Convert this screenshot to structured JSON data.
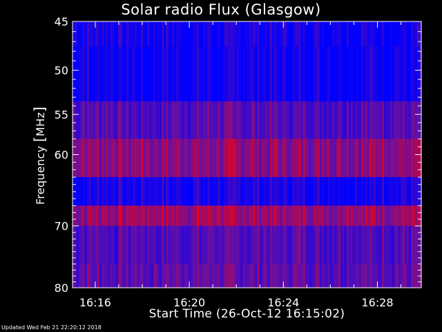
{
  "chart_data": {
    "type": "heatmap",
    "title": "Solar radio Flux (Glasgow)",
    "xlabel": "Start Time (26-Oct-12 16:15:02)",
    "ylabel": "Frequency",
    "ylabel_unit": "MHz",
    "x_ticks": [
      {
        "time": "16:16:00",
        "label": "16:16"
      },
      {
        "time": "16:20:00",
        "label": "16:20"
      },
      {
        "time": "16:24:00",
        "label": "16:24"
      },
      {
        "time": "16:28:00",
        "label": "16:28"
      }
    ],
    "x_range": [
      "16:15:02",
      "16:29:52"
    ],
    "y_ticks": [
      45,
      50,
      55,
      60,
      70,
      80
    ],
    "y_range_mhz": [
      45,
      80
    ],
    "y_scale": "log",
    "frequency_bands": [
      {
        "from_mhz": 45,
        "to_mhz": 47.5,
        "intensity": 0.1
      },
      {
        "from_mhz": 47.5,
        "to_mhz": 53.5,
        "intensity": 0.08
      },
      {
        "from_mhz": 53.5,
        "to_mhz": 58,
        "intensity": 0.4
      },
      {
        "from_mhz": 58,
        "to_mhz": 63,
        "intensity": 0.62
      },
      {
        "from_mhz": 63,
        "to_mhz": 67,
        "intensity": 0.12
      },
      {
        "from_mhz": 67,
        "to_mhz": 70,
        "intensity": 0.68
      },
      {
        "from_mhz": 70,
        "to_mhz": 76,
        "intensity": 0.4
      },
      {
        "from_mhz": 76,
        "to_mhz": 80,
        "intensity": 0.45
      }
    ],
    "colors": {
      "low": "#0000ff",
      "mid": "#6a10a0",
      "high": "#ff0000",
      "peak": "#ffcc66"
    },
    "grid": false,
    "legend": "none"
  },
  "footer": {
    "updated": "Updated Wed Feb 21 22:20:12 2018"
  }
}
